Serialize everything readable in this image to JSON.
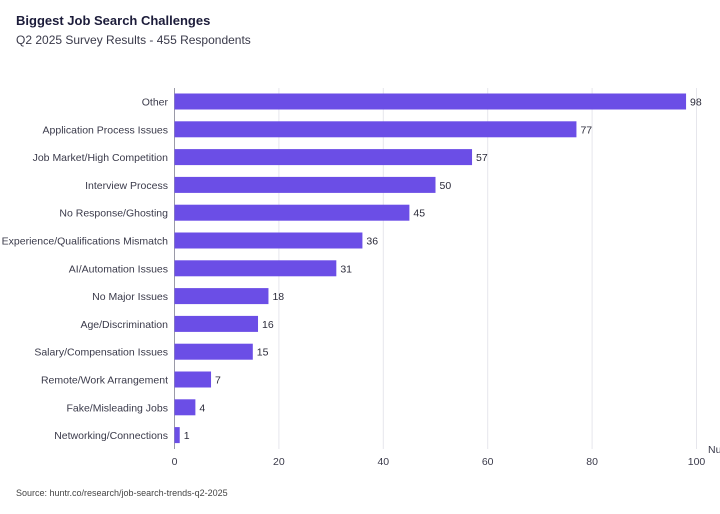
{
  "chart_data": {
    "type": "bar",
    "orientation": "horizontal",
    "title": "Biggest Job Search Challenges",
    "subtitle": "Q2 2025 Survey Results - 455 Respondents",
    "xlabel": "Nu",
    "ylabel": "",
    "xlim": [
      0,
      100
    ],
    "xticks": [
      0,
      20,
      40,
      60,
      80,
      100
    ],
    "grid": true,
    "bar_color": "#6b4ee6",
    "categories": [
      "Other",
      "Application Process Issues",
      "Job Market/High Competition",
      "Interview Process",
      "No Response/Ghosting",
      "Experience/Qualifications Mismatch",
      "AI/Automation Issues",
      "No Major Issues",
      "Age/Discrimination",
      "Salary/Compensation Issues",
      "Remote/Work Arrangement",
      "Fake/Misleading Jobs",
      "Networking/Connections"
    ],
    "values": [
      98,
      77,
      57,
      50,
      45,
      36,
      31,
      18,
      16,
      15,
      7,
      4,
      1
    ]
  },
  "footer": {
    "source": "Source: huntr.co/research/job-search-trends-q2-2025"
  }
}
